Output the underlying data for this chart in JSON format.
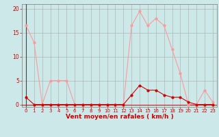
{
  "x": [
    0,
    1,
    2,
    3,
    4,
    5,
    6,
    7,
    8,
    9,
    10,
    11,
    12,
    13,
    14,
    15,
    16,
    17,
    18,
    19,
    20,
    21,
    22,
    23
  ],
  "y_light": [
    16.5,
    13,
    0,
    5,
    5,
    5,
    0,
    0,
    0,
    0,
    0,
    0,
    0,
    16.5,
    19.5,
    16.5,
    18,
    16.5,
    11.5,
    6.5,
    0,
    0,
    3,
    0.5
  ],
  "y_dark": [
    1.5,
    0,
    0,
    0,
    0,
    0,
    0,
    0,
    0,
    0,
    0,
    0,
    0,
    2,
    4,
    3,
    3,
    2,
    1.5,
    1.5,
    0.5,
    0,
    0,
    0
  ],
  "xlabel": "Vent moyen/en rafales ( km/h )",
  "yticks": [
    0,
    5,
    10,
    15,
    20
  ],
  "xticks": [
    0,
    1,
    2,
    3,
    4,
    5,
    6,
    7,
    8,
    9,
    10,
    11,
    12,
    13,
    14,
    15,
    16,
    17,
    18,
    19,
    20,
    21,
    22,
    23
  ],
  "bg_color": "#cce8e8",
  "grid_color": "#aaaaaa",
  "line_light_color": "#ff9999",
  "line_dark_color": "#cc0000",
  "xlabel_color": "#cc0000",
  "tick_color": "#cc0000",
  "spine_color": "#888888",
  "ylim": [
    -0.5,
    21
  ],
  "xlim": [
    -0.5,
    23.5
  ]
}
